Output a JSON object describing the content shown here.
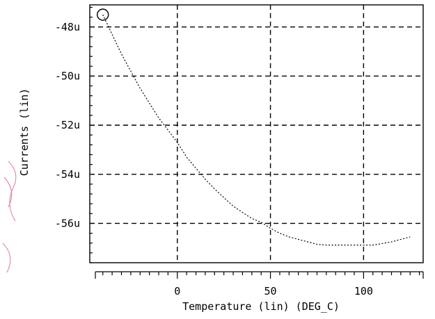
{
  "chart_data": {
    "type": "line",
    "xlabel": "Temperature (lin) (DEG_C)",
    "ylabel": "Currents (lin)",
    "xlim": [
      -47,
      132
    ],
    "ylim": [
      -57.6,
      -47.1
    ],
    "x_ticks": [
      0,
      50,
      100
    ],
    "x_tick_labels": [
      "0",
      "50",
      "100"
    ],
    "y_ticks": [
      -48,
      -50,
      -52,
      -54,
      -56
    ],
    "y_tick_labels": [
      "-48u",
      "-50u",
      "-52u",
      "-54u",
      "-56u"
    ],
    "grid": true,
    "series": [
      {
        "marker": "circle",
        "x": [
          -40,
          -35,
          -30,
          -25,
          -20,
          -15,
          -10,
          -5,
          0,
          5,
          10,
          15,
          20,
          25,
          30,
          35,
          40,
          45,
          50,
          55,
          60,
          65,
          70,
          75,
          80,
          85,
          90,
          95,
          100,
          105,
          110,
          115,
          120,
          125
        ],
        "y": [
          -47.5,
          -48.3,
          -49.1,
          -49.8,
          -50.5,
          -51.1,
          -51.7,
          -52.2,
          -52.7,
          -53.3,
          -53.75,
          -54.2,
          -54.6,
          -54.95,
          -55.3,
          -55.55,
          -55.8,
          -55.95,
          -56.2,
          -56.4,
          -56.55,
          -56.65,
          -56.75,
          -56.85,
          -56.88,
          -56.88,
          -56.88,
          -56.88,
          -56.88,
          -56.88,
          -56.82,
          -56.75,
          -56.65,
          -56.55
        ]
      }
    ]
  }
}
